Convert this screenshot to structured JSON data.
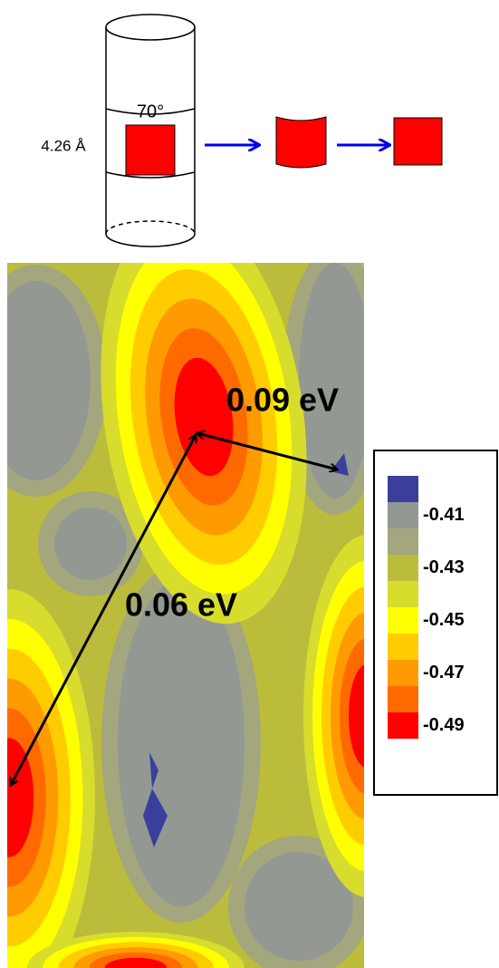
{
  "diagram": {
    "thickness_label": "4.26 Å",
    "angle_label": "70°"
  },
  "map": {
    "annotations": [
      "0.09 eV",
      "0.06 eV"
    ]
  },
  "colorbar": {
    "colors": [
      "#3b3f9c",
      "#939893",
      "#a4a67e",
      "#bcbc3c",
      "#d8dc2c",
      "#ffff00",
      "#ffcc00",
      "#ff9a00",
      "#ff6a00",
      "#ff0000"
    ],
    "ticks": [
      -0.41,
      -0.43,
      -0.45,
      -0.47,
      -0.49
    ]
  }
}
